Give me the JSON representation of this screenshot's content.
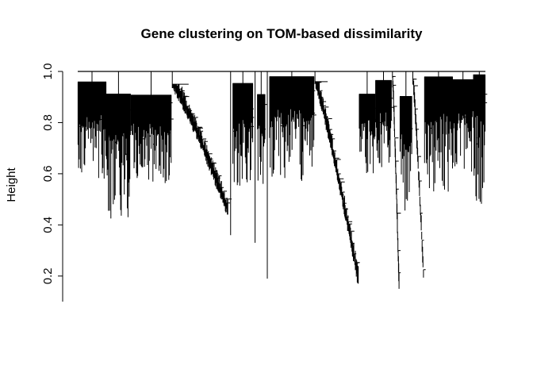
{
  "chart_data": {
    "type": "dendrogram",
    "title": "Gene clustering on TOM-based dissimilarity",
    "xlabel": "",
    "ylabel": "Height",
    "ylim": [
      0.1,
      1.0
    ],
    "yticks": [
      0.2,
      0.4,
      0.6,
      0.8,
      1.0
    ],
    "ytick_labels": [
      "0.2",
      "0.4",
      "0.6",
      "0.8",
      "1.0"
    ],
    "grid": false,
    "legend": "none",
    "line_color": "#000000",
    "x_range": [
      0,
      100
    ],
    "root_height": 1.0,
    "segments": [
      {
        "x_start": 0,
        "x_end": 7,
        "min_height": 0.57,
        "profile": "dense"
      },
      {
        "x_start": 7,
        "x_end": 13,
        "min_height": 0.42,
        "profile": "dense"
      },
      {
        "x_start": 13,
        "x_end": 23,
        "min_height": 0.56,
        "profile": "dense"
      },
      {
        "x_start": 23,
        "x_end": 37,
        "min_height": 0.45,
        "profile": "slope",
        "top": 0.95
      },
      {
        "x_start": 37,
        "x_end": 38,
        "min_height": 0.36,
        "profile": "single"
      },
      {
        "x_start": 38,
        "x_end": 43,
        "min_height": 0.54,
        "profile": "dense"
      },
      {
        "x_start": 43,
        "x_end": 44,
        "min_height": 0.33,
        "profile": "single"
      },
      {
        "x_start": 44,
        "x_end": 46,
        "min_height": 0.54,
        "profile": "dense"
      },
      {
        "x_start": 46,
        "x_end": 47,
        "min_height": 0.19,
        "profile": "single"
      },
      {
        "x_start": 47,
        "x_end": 58,
        "min_height": 0.57,
        "profile": "dense"
      },
      {
        "x_start": 58,
        "x_end": 69,
        "min_height": 0.18,
        "profile": "slope",
        "top": 0.96
      },
      {
        "x_start": 69,
        "x_end": 73,
        "min_height": 0.59,
        "profile": "dense"
      },
      {
        "x_start": 73,
        "x_end": 77,
        "min_height": 0.62,
        "profile": "dense"
      },
      {
        "x_start": 77,
        "x_end": 79,
        "min_height": 0.16,
        "profile": "slope",
        "top": 0.98
      },
      {
        "x_start": 79,
        "x_end": 82,
        "min_height": 0.45,
        "profile": "dense"
      },
      {
        "x_start": 82,
        "x_end": 85,
        "min_height": 0.2,
        "profile": "slope",
        "top": 0.97
      },
      {
        "x_start": 85,
        "x_end": 92,
        "min_height": 0.53,
        "profile": "dense"
      },
      {
        "x_start": 92,
        "x_end": 97,
        "min_height": 0.6,
        "profile": "dense"
      },
      {
        "x_start": 97,
        "x_end": 100,
        "min_height": 0.48,
        "profile": "dense"
      }
    ]
  }
}
